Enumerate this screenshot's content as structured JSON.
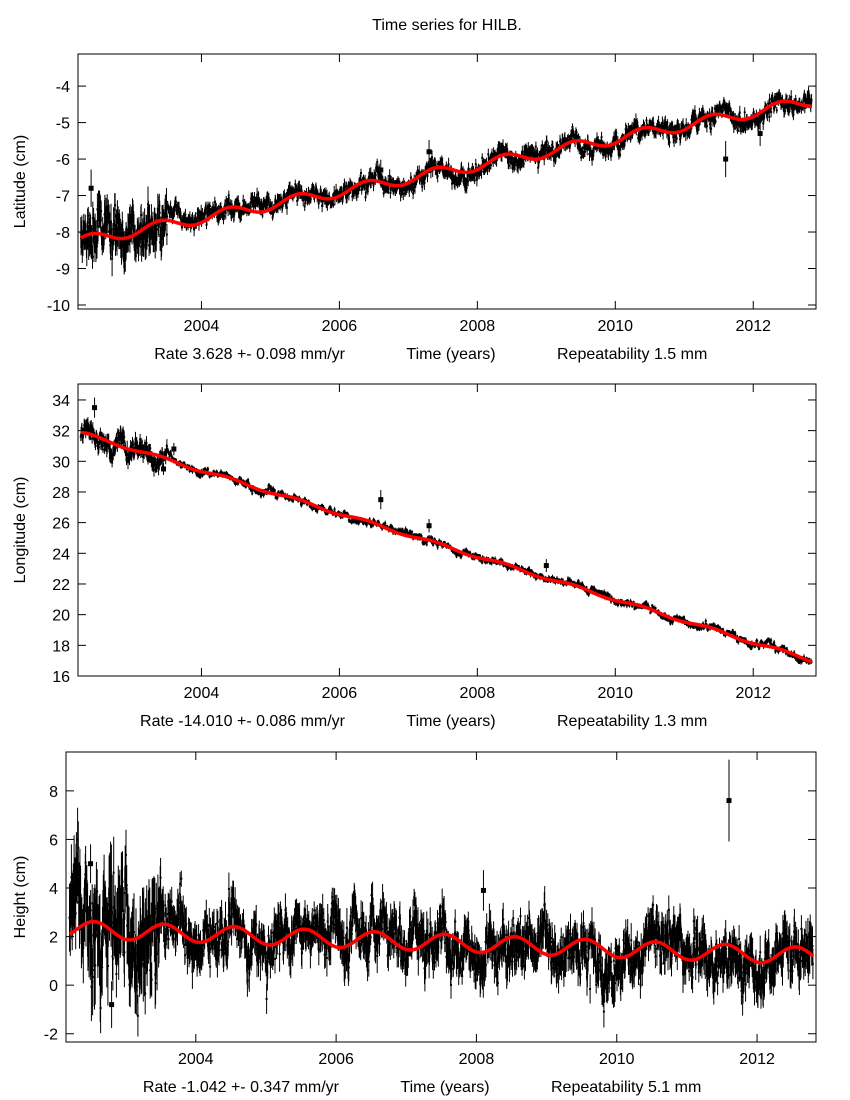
{
  "title": "Time series for HILB.",
  "colors": {
    "data": "#000000",
    "fit": "#ff0000",
    "frame": "#000000"
  },
  "chart_data": [
    {
      "type": "scatter",
      "component": "latitude",
      "ylabel": "Latitude (cm)",
      "xlabel": "Time (years)",
      "rate_text": "Rate 3.628 +- 0.098 mm/yr",
      "repeatability_text": "Repeatability 1.5 mm",
      "xlim": [
        2002.21,
        2012.91
      ],
      "ylim": [
        -10.11,
        -3.12
      ],
      "xticks": [
        2004,
        2006,
        2008,
        2010,
        2012
      ],
      "yticks": [
        -10,
        -9,
        -8,
        -7,
        -6,
        -5,
        -4
      ],
      "data_span": [
        2002.25,
        2012.85
      ],
      "fit": {
        "value_at_2007_5": -6.35,
        "rate_cm_per_yr": 0.3628,
        "annual_amplitude_cm": 0.15,
        "annual_phase_yr": 0.15
      },
      "noise_cm": {
        "early_until_2003_5": 0.35,
        "later": 0.13
      },
      "outliers": [
        {
          "x": 2002.4,
          "y": -6.8
        },
        {
          "x": 2007.3,
          "y": -5.8
        },
        {
          "x": 2006.6,
          "y": -6.3
        },
        {
          "x": 2011.6,
          "y": -6.0
        },
        {
          "x": 2012.1,
          "y": -5.3
        }
      ]
    },
    {
      "type": "scatter",
      "component": "longitude",
      "ylabel": "Longitude (cm)",
      "xlabel": "Time (years)",
      "rate_text": "Rate -14.010 +- 0.086 mm/yr",
      "repeatability_text": "Repeatability 1.3 mm",
      "xlim": [
        2002.21,
        2012.91
      ],
      "ylim": [
        16,
        35.04
      ],
      "xticks": [
        2004,
        2006,
        2008,
        2010,
        2012
      ],
      "yticks": [
        16,
        18,
        20,
        22,
        24,
        26,
        28,
        30,
        32,
        34
      ],
      "data_span": [
        2002.25,
        2012.85
      ],
      "fit": {
        "value_at_2007_5": 24.5,
        "rate_cm_per_yr": -1.401,
        "annual_amplitude_cm": 0.1,
        "annual_phase_yr": 0.15
      },
      "noise_cm": {
        "early_until_2003_5": 0.35,
        "later": 0.12
      },
      "outliers": [
        {
          "x": 2002.45,
          "y": 33.5
        },
        {
          "x": 2003.45,
          "y": 29.5
        },
        {
          "x": 2003.6,
          "y": 30.8
        },
        {
          "x": 2006.6,
          "y": 27.5
        },
        {
          "x": 2007.3,
          "y": 25.8
        },
        {
          "x": 2009.0,
          "y": 23.2
        }
      ]
    },
    {
      "type": "scatter",
      "component": "height",
      "ylabel": "Height (cm)",
      "xlabel": "Time (years)",
      "rate_text": "Rate -1.042 +- 0.347 mm/yr",
      "repeatability_text": "Repeatability 5.1 mm",
      "xlim": [
        2002.15,
        2012.84
      ],
      "ylim": [
        -2.34,
        9.6
      ],
      "xticks": [
        2004,
        2006,
        2008,
        2010,
        2012
      ],
      "yticks": [
        -2,
        0,
        2,
        4,
        6,
        8
      ],
      "data_span": [
        2002.2,
        2012.8
      ],
      "fit": {
        "value_at_2007_5": 1.75,
        "rate_cm_per_yr": -0.1042,
        "annual_amplitude_cm": 0.35,
        "annual_phase_yr": 0.3
      },
      "noise_cm": {
        "early_until_2003_5": 1.1,
        "later": 0.55
      },
      "outliers": [
        {
          "x": 2011.6,
          "y": 7.6
        },
        {
          "x": 2002.5,
          "y": 5.0
        },
        {
          "x": 2008.1,
          "y": 3.9
        },
        {
          "x": 2002.8,
          "y": -0.8
        }
      ]
    }
  ]
}
